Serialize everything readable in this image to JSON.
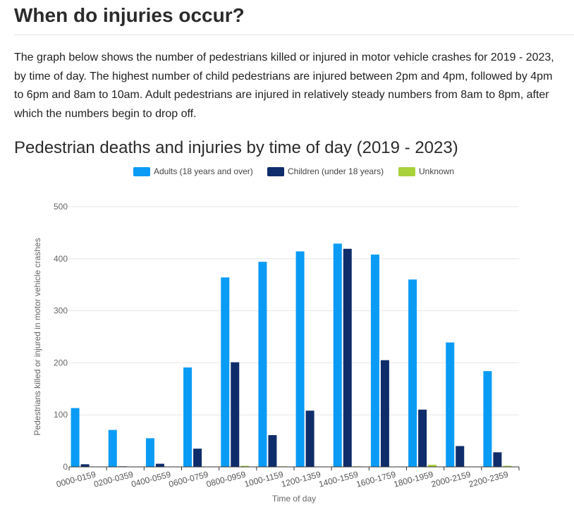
{
  "page": {
    "heading": "When do injuries occur?",
    "intro": "The graph below shows the number of pedestrians killed or injured in motor vehicle crashes for 2019 - 2023, by time of day. The highest number of child pedestrians are injured between 2pm and 4pm, followed by 4pm to 6pm and 8am to 10am. Adult pedestrians are injured in relatively steady numbers from 8am to 8pm, after which the numbers begin to drop off."
  },
  "chart_data": {
    "type": "bar",
    "title": "Pedestrian deaths and injuries by time of day (2019 - 2023)",
    "xlabel": "Time of day",
    "ylabel": "Pedestrians killed or injured in motor vehicle crashes",
    "ylim": [
      0,
      500
    ],
    "yticks": [
      0,
      100,
      200,
      300,
      400,
      500
    ],
    "grid": true,
    "legend_position": "top-center",
    "categories": [
      "0000-0159",
      "0200-0359",
      "0400-0559",
      "0600-0759",
      "0800-0959",
      "1000-1159",
      "1200-1359",
      "1400-1559",
      "1600-1759",
      "1800-1959",
      "2000-2159",
      "2200-2359"
    ],
    "series": [
      {
        "name": "Adults (18 years and over)",
        "color": "#0a9bf5",
        "values": [
          113,
          71,
          55,
          191,
          364,
          394,
          414,
          429,
          408,
          360,
          239,
          184
        ]
      },
      {
        "name": "Children (under 18 years)",
        "color": "#0f2d6b",
        "values": [
          5,
          1,
          6,
          35,
          201,
          61,
          108,
          419,
          205,
          110,
          40,
          28
        ]
      },
      {
        "name": "Unknown",
        "color": "#a8d13a",
        "values": [
          0,
          0,
          0,
          0,
          2,
          1,
          0,
          1,
          0,
          4,
          0,
          2
        ]
      }
    ]
  }
}
